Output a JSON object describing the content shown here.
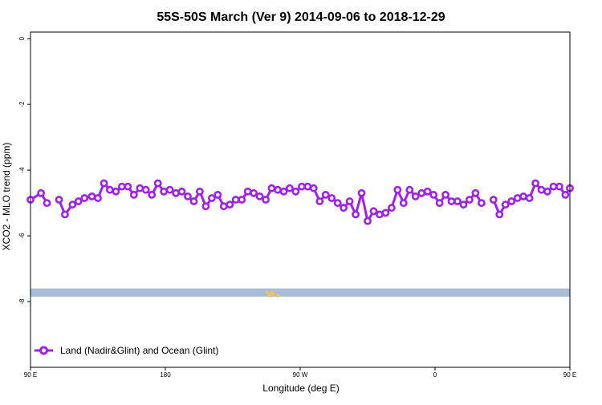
{
  "chart_data": {
    "type": "line",
    "title": "55S-50S March (Ver 9)   2014-09-06 to 2018-12-29",
    "xlabel": "Longitude (deg E)",
    "ylabel": "XCO2 - MLO trend (ppm)",
    "xlim": [
      90,
      450
    ],
    "ylim": [
      -10,
      0.2
    ],
    "x_ticks": [
      {
        "value": 90,
        "label": "90 E"
      },
      {
        "value": 180,
        "label": "180"
      },
      {
        "value": 270,
        "label": "90 W"
      },
      {
        "value": 360,
        "label": "0"
      },
      {
        "value": 450,
        "label": "90 E"
      },
      {
        "value": 540,
        "label": "180"
      }
    ],
    "y_ticks": [
      {
        "value": 0,
        "label": "0"
      },
      {
        "value": -2,
        "label": "-2"
      },
      {
        "value": -4,
        "label": "-4"
      },
      {
        "value": -6,
        "label": "-6"
      },
      {
        "value": -8,
        "label": "-8"
      }
    ],
    "grid": false,
    "legend_position": "bottom-left",
    "series": [
      {
        "name": "Land (Nadir&Glint) and Ocean (Glint)",
        "color": "#a020f0",
        "segments": [
          [
            [
              90,
              -4.9
            ],
            [
              97,
              -4.7
            ],
            [
              101,
              -5.0
            ]
          ],
          [
            [
              109,
              -4.9
            ],
            [
              113,
              -5.35
            ],
            [
              118,
              -5.05
            ],
            [
              122,
              -4.95
            ],
            [
              126,
              -4.85
            ],
            [
              131,
              -4.8
            ],
            [
              135,
              -4.85
            ],
            [
              139,
              -4.4
            ],
            [
              143,
              -4.6
            ],
            [
              147,
              -4.65
            ],
            [
              151,
              -4.5
            ],
            [
              155,
              -4.5
            ],
            [
              159,
              -4.75
            ],
            [
              163,
              -4.55
            ],
            [
              167,
              -4.6
            ],
            [
              171,
              -4.75
            ],
            [
              175,
              -4.4
            ],
            [
              179,
              -4.65
            ],
            [
              183,
              -4.6
            ],
            [
              187,
              -4.7
            ],
            [
              191,
              -4.65
            ],
            [
              195,
              -4.8
            ],
            [
              199,
              -4.95
            ],
            [
              203,
              -4.65
            ],
            [
              207,
              -5.1
            ],
            [
              211,
              -4.85
            ],
            [
              215,
              -4.75
            ],
            [
              219,
              -5.1
            ],
            [
              223,
              -5.05
            ],
            [
              227,
              -4.9
            ],
            [
              231,
              -4.9
            ],
            [
              235,
              -4.65
            ],
            [
              239,
              -4.7
            ],
            [
              243,
              -4.8
            ],
            [
              247,
              -4.9
            ],
            [
              251,
              -4.55
            ],
            [
              255,
              -4.6
            ],
            [
              259,
              -4.65
            ],
            [
              263,
              -4.55
            ],
            [
              267,
              -4.65
            ],
            [
              271,
              -4.5
            ],
            [
              275,
              -4.5
            ],
            [
              279,
              -4.55
            ],
            [
              283,
              -4.95
            ],
            [
              287,
              -4.75
            ],
            [
              291,
              -4.85
            ],
            [
              295,
              -5.0
            ],
            [
              299,
              -5.15
            ],
            [
              303,
              -4.95
            ],
            [
              307,
              -5.35
            ],
            [
              311,
              -4.7
            ],
            [
              315,
              -5.55
            ],
            [
              319,
              -5.25
            ],
            [
              323,
              -5.35
            ],
            [
              327,
              -5.3
            ],
            [
              331,
              -5.15
            ],
            [
              335,
              -4.6
            ],
            [
              339,
              -5.0
            ],
            [
              343,
              -4.6
            ],
            [
              347,
              -4.8
            ],
            [
              351,
              -4.7
            ],
            [
              355,
              -4.65
            ],
            [
              359,
              -4.75
            ],
            [
              363,
              -5.0
            ],
            [
              367,
              -4.75
            ],
            [
              371,
              -4.95
            ],
            [
              375,
              -4.95
            ],
            [
              379,
              -5.05
            ],
            [
              383,
              -4.9
            ],
            [
              387,
              -4.7
            ],
            [
              391,
              -5.0
            ]
          ],
          [
            [
              399,
              -4.9
            ],
            [
              403,
              -5.35
            ],
            [
              407,
              -5.05
            ],
            [
              411,
              -4.95
            ],
            [
              415,
              -4.85
            ],
            [
              419,
              -4.8
            ],
            [
              423,
              -4.85
            ],
            [
              427,
              -4.4
            ],
            [
              431,
              -4.6
            ],
            [
              435,
              -4.65
            ],
            [
              439,
              -4.5
            ],
            [
              443,
              -4.5
            ],
            [
              447,
              -4.75
            ],
            [
              450,
              -4.55
            ]
          ]
        ]
      }
    ],
    "band": {
      "y_top": -7.6,
      "y_bottom": -7.85,
      "color": "#a9bcd9"
    },
    "band_marks": {
      "color": "#f4c064",
      "x": [
        248,
        249,
        250,
        251,
        252,
        255
      ]
    }
  }
}
